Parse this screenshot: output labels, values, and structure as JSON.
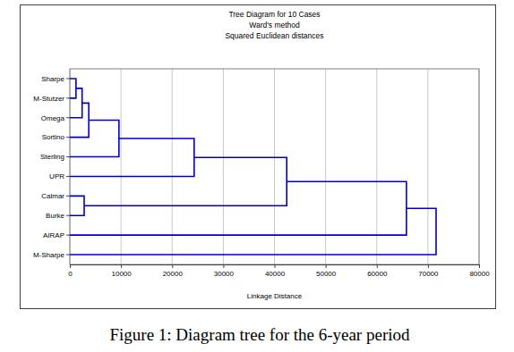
{
  "chart_data": {
    "type": "dendrogram",
    "title": "Tree Diagram for 10 Cases",
    "subtitle": [
      "Ward's method",
      "Squared Euclidean distances"
    ],
    "x_label": "Linkage Distance",
    "leaves": [
      "Sharpe",
      "M-Stutzer",
      "Omega",
      "Sortino",
      "Sterling",
      "UPR",
      "Calmar",
      "Burke",
      "AIRAP",
      "M-Sharpe"
    ],
    "merges": [
      {
        "children": [
          0,
          1
        ],
        "height": 1200
      },
      {
        "children": [
          10,
          2
        ],
        "height": 2400
      },
      {
        "children": [
          11,
          3
        ],
        "height": 3700
      },
      {
        "children": [
          6,
          7
        ],
        "height": 2800
      },
      {
        "children": [
          12,
          4
        ],
        "height": 9600
      },
      {
        "children": [
          14,
          5
        ],
        "height": 24300
      },
      {
        "children": [
          15,
          13
        ],
        "height": 42400
      },
      {
        "children": [
          16,
          8
        ],
        "height": 65800
      },
      {
        "children": [
          17,
          9
        ],
        "height": 71600
      }
    ],
    "xlim": [
      0,
      80000
    ],
    "xticks": [
      0,
      10000,
      20000,
      30000,
      40000,
      50000,
      60000,
      70000,
      80000
    ],
    "color": "#0000cc",
    "grid": true
  },
  "caption": "Figure 1: Diagram tree for the 6-year period"
}
